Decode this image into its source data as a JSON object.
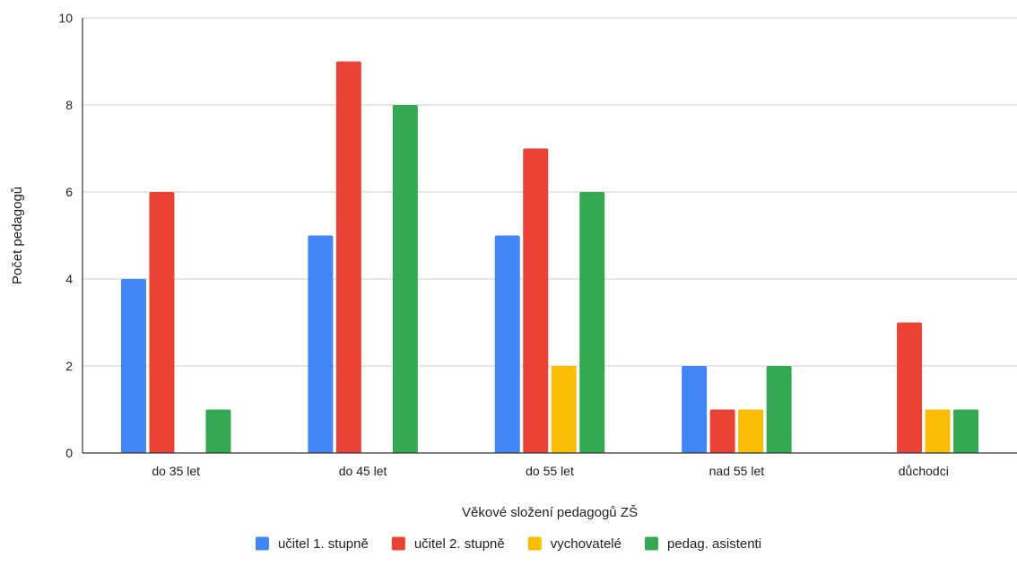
{
  "chart_data": {
    "type": "bar",
    "title": "",
    "xlabel": "Věkové složení pedagogů ZŠ",
    "ylabel": "Počet pedagogů",
    "categories": [
      "do 35 let",
      "do 45 let",
      "do 55 let",
      "nad 55 let",
      "důchodci"
    ],
    "series": [
      {
        "name": "učitel 1. stupně",
        "color": "#4285F4",
        "values": [
          4,
          5,
          5,
          2,
          0
        ]
      },
      {
        "name": "učitel 2. stupně",
        "color": "#EA4335",
        "values": [
          6,
          9,
          7,
          1,
          3
        ]
      },
      {
        "name": "vychovatelé",
        "color": "#FBBC04",
        "values": [
          0,
          0,
          2,
          1,
          1
        ]
      },
      {
        "name": "pedag. asistenti",
        "color": "#34A853",
        "values": [
          1,
          8,
          6,
          2,
          1
        ]
      }
    ],
    "ylim": [
      0,
      10
    ],
    "yticks": [
      0,
      2,
      4,
      6,
      8,
      10
    ],
    "grid": true,
    "legend_position": "bottom"
  }
}
